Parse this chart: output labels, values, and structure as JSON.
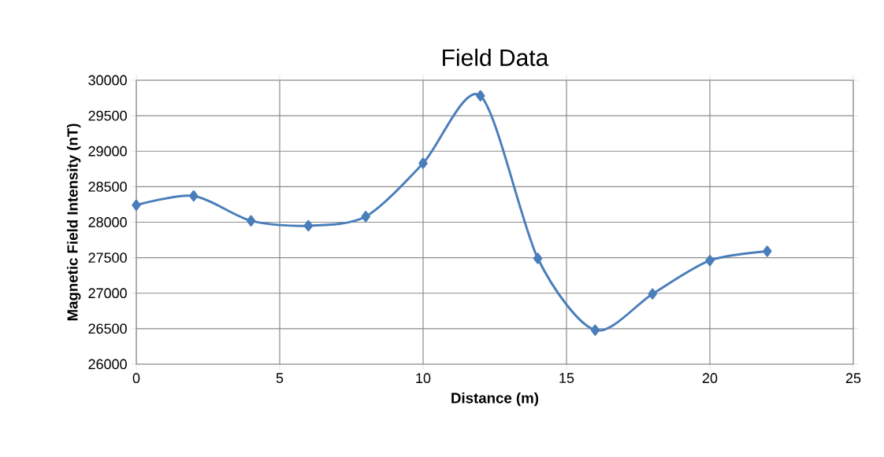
{
  "chart_data": {
    "type": "line",
    "title": "Field Data",
    "xlabel": "Distance (m)",
    "ylabel": "Magnetic Field Intensity (nT)",
    "x": [
      0,
      2,
      4,
      6,
      8,
      10,
      12,
      14,
      16,
      18,
      20,
      22
    ],
    "values": [
      28240,
      28370,
      28020,
      27950,
      28080,
      28830,
      29780,
      27490,
      26480,
      26990,
      27460,
      27590
    ],
    "color": "#4a7ebb",
    "xlim": [
      0,
      25
    ],
    "xticks": [
      0,
      5,
      10,
      15,
      20,
      25
    ],
    "ylim": [
      26000,
      30000
    ],
    "yticks": [
      26000,
      26500,
      27000,
      27500,
      28000,
      28500,
      29000,
      29500,
      30000
    ],
    "grid": true,
    "marker": "diamond",
    "line_style": "solid"
  }
}
